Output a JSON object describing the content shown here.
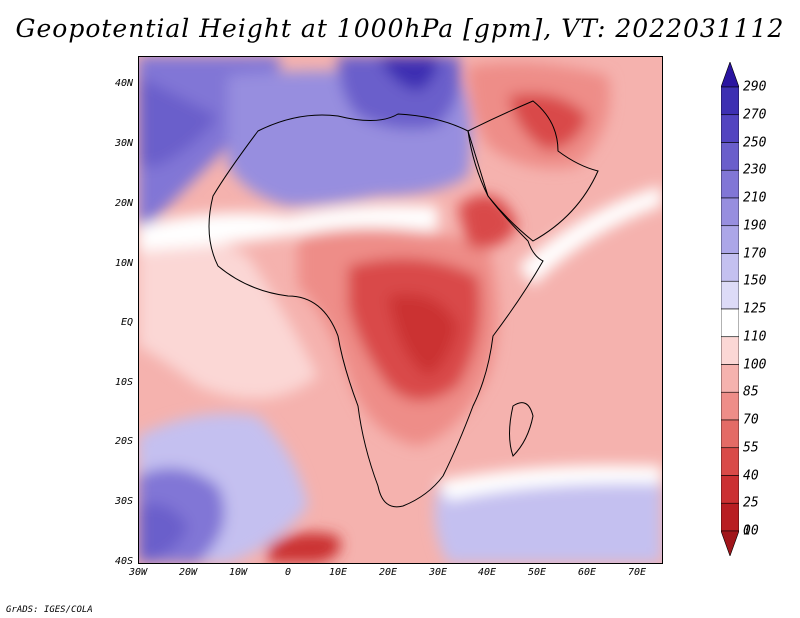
{
  "title": "Geopotential Height at 1000hPa [gpm], VT: 2022031112",
  "credit": "GrADS: IGES/COLA",
  "map": {
    "region": "Africa, Arabian Peninsula and Mediterranean",
    "latitude_labels": [
      "40N",
      "30N",
      "20N",
      "10N",
      "EQ",
      "10S",
      "20S",
      "30S",
      "40S"
    ],
    "longitude_labels": [
      "30W",
      "20W",
      "10W",
      "0",
      "10E",
      "20E",
      "30E",
      "40E",
      "50E",
      "60E",
      "70E"
    ],
    "extent": {
      "lon_min": -30,
      "lon_max": 75,
      "lat_min": -40,
      "lat_max": 45
    }
  },
  "colorbar": {
    "levels": [
      "290",
      "270",
      "250",
      "230",
      "210",
      "190",
      "170",
      "150",
      "125",
      "110",
      "100",
      "85",
      "70",
      "55",
      "40",
      "25",
      "10",
      "0"
    ],
    "colors": [
      "#2a14a0",
      "#3d2fb2",
      "#5244c0",
      "#6a5ecb",
      "#8176d6",
      "#978edf",
      "#aca6e8",
      "#c4c0f0",
      "#dddbf7",
      "#ffffff",
      "#fbd7d5",
      "#f5b2ae",
      "#ee8d88",
      "#e46b66",
      "#d94a48",
      "#cb3032",
      "#b81d22",
      "#a0161b"
    ]
  }
}
